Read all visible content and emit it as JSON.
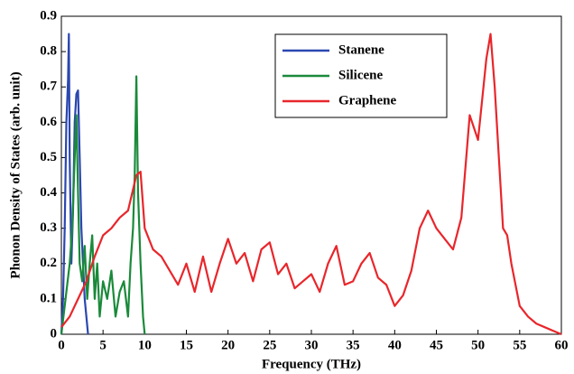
{
  "chart_data": {
    "type": "line",
    "xlabel": "Frequency (THz)",
    "ylabel": "Phonon Density of States (arb. unit)",
    "xlim": [
      0,
      60
    ],
    "xticks": [
      0,
      5,
      10,
      15,
      20,
      25,
      30,
      35,
      40,
      45,
      50,
      55,
      60
    ],
    "ylim": [
      0,
      0.9
    ],
    "yticks": [
      0,
      0.1,
      0.2,
      0.3,
      0.4,
      0.5,
      0.6,
      0.7,
      0.8,
      0.9
    ],
    "grid": false,
    "legend": "upper center",
    "series": [
      {
        "name": "Stanene",
        "color": "#2b47b0",
        "x": [
          0,
          0.2,
          0.4,
          0.6,
          0.8,
          0.9,
          1.0,
          1.2,
          1.4,
          1.6,
          1.8,
          2.0,
          2.2,
          2.4,
          2.6,
          2.8,
          3.0,
          3.2
        ],
        "values": [
          0,
          0.1,
          0.3,
          0.6,
          0.72,
          0.85,
          0.5,
          0.2,
          0.35,
          0.6,
          0.68,
          0.69,
          0.5,
          0.3,
          0.2,
          0.1,
          0.05,
          0
        ]
      },
      {
        "name": "Silicene",
        "color": "#1a8a3a",
        "x": [
          0,
          0.5,
          1,
          1.3,
          1.6,
          1.8,
          2.0,
          2.2,
          2.5,
          2.8,
          3.1,
          3.4,
          3.7,
          4.0,
          4.3,
          4.6,
          5,
          5.5,
          6,
          6.5,
          7,
          7.5,
          8,
          8.3,
          8.6,
          8.8,
          9.0,
          9.2,
          9.5,
          9.8,
          10
        ],
        "values": [
          0,
          0.1,
          0.2,
          0.3,
          0.5,
          0.62,
          0.4,
          0.2,
          0.15,
          0.25,
          0.1,
          0.2,
          0.28,
          0.1,
          0.2,
          0.05,
          0.15,
          0.1,
          0.18,
          0.05,
          0.12,
          0.15,
          0.05,
          0.2,
          0.3,
          0.45,
          0.73,
          0.4,
          0.2,
          0.05,
          0
        ]
      },
      {
        "name": "Graphene",
        "color": "#e8262b",
        "x": [
          0,
          1,
          2,
          3,
          4,
          5,
          6,
          7,
          8,
          9,
          9.5,
          10,
          11,
          12,
          13,
          14,
          15,
          16,
          17,
          18,
          19,
          20,
          21,
          22,
          23,
          24,
          25,
          26,
          27,
          28,
          29,
          30,
          31,
          32,
          33,
          34,
          35,
          36,
          37,
          38,
          39,
          40,
          41,
          42,
          43,
          44,
          45,
          46,
          47,
          48,
          49,
          50,
          51,
          51.5,
          52,
          53,
          53.5,
          54,
          55,
          56,
          57,
          58,
          59,
          60
        ],
        "values": [
          0.02,
          0.05,
          0.1,
          0.15,
          0.22,
          0.28,
          0.3,
          0.33,
          0.35,
          0.45,
          0.46,
          0.3,
          0.24,
          0.22,
          0.18,
          0.14,
          0.2,
          0.12,
          0.22,
          0.12,
          0.2,
          0.27,
          0.2,
          0.23,
          0.15,
          0.24,
          0.26,
          0.17,
          0.2,
          0.13,
          0.15,
          0.17,
          0.12,
          0.2,
          0.25,
          0.14,
          0.15,
          0.2,
          0.23,
          0.16,
          0.14,
          0.08,
          0.11,
          0.18,
          0.3,
          0.35,
          0.3,
          0.27,
          0.24,
          0.33,
          0.62,
          0.55,
          0.78,
          0.85,
          0.7,
          0.3,
          0.28,
          0.2,
          0.08,
          0.05,
          0.03,
          0.02,
          0.01,
          0
        ]
      }
    ]
  }
}
